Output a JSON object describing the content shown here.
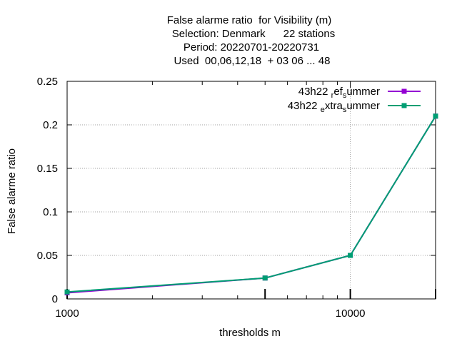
{
  "chart_data": {
    "type": "line",
    "title_lines": [
      "False alarme ratio  for Visibility (m)",
      "Selection: Denmark      22 stations",
      "Period: 20220701-20220731",
      "Used  00,06,12,18  + 03 06 ... 48"
    ],
    "xlabel": "thresholds m",
    "ylabel": "False alarme ratio",
    "x_scale": "log",
    "xlim": [
      1000,
      20000
    ],
    "ylim": [
      0,
      0.25
    ],
    "x_tick_labels": [
      {
        "value": 1000,
        "label": "1000"
      },
      {
        "value": 10000,
        "label": "10000"
      }
    ],
    "y_ticks": [
      {
        "value": 0,
        "label": "0"
      },
      {
        "value": 0.05,
        "label": "0.05"
      },
      {
        "value": 0.1,
        "label": "0.1"
      },
      {
        "value": 0.15,
        "label": "0.15"
      },
      {
        "value": 0.2,
        "label": "0.2"
      },
      {
        "value": 0.25,
        "label": "0.25"
      }
    ],
    "grid": true,
    "legend_position": "top-right",
    "x": [
      1000,
      5000,
      10000,
      20000
    ],
    "series": [
      {
        "name": "43h22 _ref_summer",
        "legend_label": {
          "pre": "43h22 ",
          "s1": "r",
          "mid": "ef",
          "s2": "s",
          "post": "ummer"
        },
        "color": "#9400d3",
        "values": [
          0.007,
          0.024,
          0.05,
          0.21
        ]
      },
      {
        "name": "43h22 _extra_summer",
        "legend_label": {
          "pre": "43h22 ",
          "s1": "e",
          "mid": "xtra",
          "s2": "s",
          "post": "ummer"
        },
        "color": "#009e73",
        "values": [
          0.008,
          0.024,
          0.05,
          0.21
        ]
      }
    ]
  }
}
